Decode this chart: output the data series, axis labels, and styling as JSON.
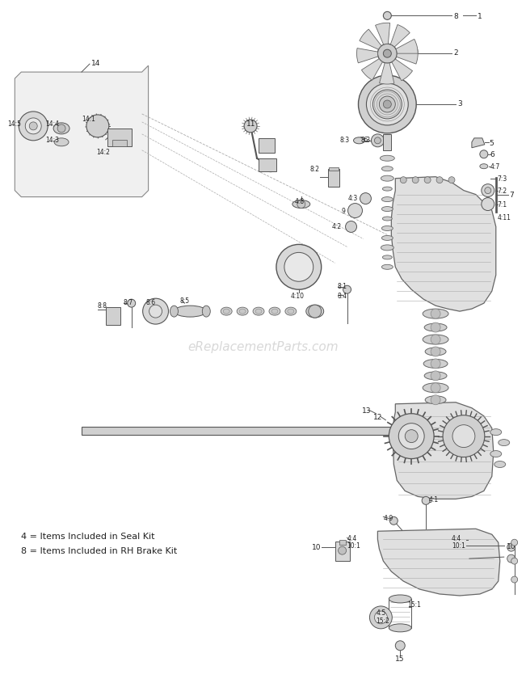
{
  "background_color": "#ffffff",
  "watermark": "eReplacementParts.com",
  "watermark_color": "#c8c8c8",
  "legend_lines": [
    "4 = Items Included in Seal Kit",
    "8 = Items Included in RH Brake Kit"
  ],
  "fig_w": 6.51,
  "fig_h": 8.5,
  "dpi": 100
}
